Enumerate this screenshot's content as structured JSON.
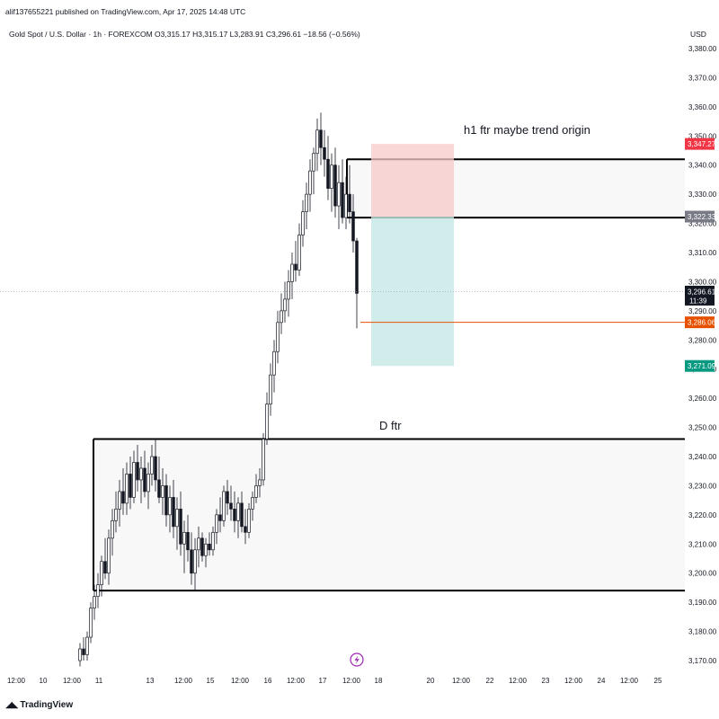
{
  "header": {
    "publish_line": "alif1376552​21 published on TradingView.com, Apr 17, 2025 14:48 UTC"
  },
  "symbol_line": "Gold Spot / U.S. Dollar · 1h · FOREXCOM  O3,315.17  H3,315.17  L3,283.91  C3,296.61  −18.56 (−0.56%)",
  "currency": "USD",
  "footer": {
    "logo_text": "TradingView",
    "logo_icon": "tradingview-logo-icon"
  },
  "colors": {
    "candle_body": "#131722",
    "candle_up": "#ffffff",
    "stop_zone": "#f7cac9",
    "target_zone": "#c5e9e6",
    "price_tag": "#131722",
    "red_tag": "#f23645",
    "gray_tag": "#787b86",
    "orange_tag": "#e65100",
    "green_tag": "#089981"
  },
  "chart_data": {
    "type": "candlestick",
    "y_axis": {
      "range": [
        3166,
        3386
      ],
      "ticks": [
        "3,380.00",
        "3,370.00",
        "3,360.00",
        "3,350.00",
        "3,340.00",
        "3,330.00",
        "3,320.00",
        "3,310.00",
        "3,300.00",
        "3,290.00",
        "3,280.00",
        "3,270.00",
        "3,260.00",
        "3,250.00",
        "3,240.00",
        "3,230.00",
        "3,220.00",
        "3,210.00",
        "3,200.00",
        "3,190.00",
        "3,180.00",
        "3,170.00"
      ],
      "tick_values": [
        3380,
        3370,
        3360,
        3350,
        3340,
        3330,
        3320,
        3310,
        3300,
        3290,
        3280,
        3270,
        3260,
        3250,
        3240,
        3230,
        3220,
        3210,
        3200,
        3190,
        3180,
        3170
      ]
    },
    "x_axis": {
      "ticks": [
        "12:00",
        "10",
        "12:00",
        "11",
        "13",
        "12:00",
        "15",
        "12:00",
        "16",
        "12:00",
        "17",
        "12:00",
        "18",
        "20",
        "12:00",
        "22",
        "12:00",
        "23",
        "12:00",
        "24",
        "12:00",
        "25"
      ],
      "tick_index": [
        0,
        10,
        20,
        27,
        40,
        50,
        59,
        69,
        79,
        89,
        99,
        109,
        119,
        139,
        149,
        159,
        169,
        179,
        189,
        199,
        209,
        219
      ]
    },
    "price_tags": [
      {
        "label": "3,347.27",
        "value": 3347.27,
        "color": "red"
      },
      {
        "label": "3,322.33",
        "value": 3322.33,
        "color": "gray"
      },
      {
        "label": "3,296.61",
        "value": 3296.61,
        "sub": "11:39",
        "color": "dark"
      },
      {
        "label": "3,286.06",
        "value": 3286.06,
        "color": "orange"
      },
      {
        "label": "3,271.09",
        "value": 3271.09,
        "color": "green"
      }
    ],
    "zones": [
      {
        "name": "h1-ftr-zone",
        "top": 3342,
        "bottom": 3322,
        "from_index": 113
      },
      {
        "name": "d-ftr-zone",
        "top": 3246,
        "bottom": 3194,
        "from_index": 30
      }
    ],
    "position": {
      "entry": 3322.33,
      "stop": 3347.27,
      "target": 3271.09,
      "from_index": 122,
      "to_index": 150
    },
    "annotations": [
      {
        "text": "h1 ftr maybe trend origin",
        "price": 3352,
        "index": 153
      },
      {
        "text": "D ftr",
        "price": 3250,
        "index": 125
      }
    ],
    "orange_line": {
      "value": 3286.06,
      "from_index": 92
    },
    "series": [
      {
        "i": 0,
        "o": 3170,
        "h": 3176,
        "l": 3168,
        "c": 3174
      },
      {
        "i": 1,
        "o": 3174,
        "h": 3178,
        "l": 3170,
        "c": 3172
      },
      {
        "i": 2,
        "o": 3172,
        "h": 3180,
        "l": 3170,
        "c": 3178
      },
      {
        "i": 3,
        "o": 3178,
        "h": 3190,
        "l": 3176,
        "c": 3188
      },
      {
        "i": 4,
        "o": 3188,
        "h": 3196,
        "l": 3184,
        "c": 3192
      },
      {
        "i": 5,
        "o": 3192,
        "h": 3200,
        "l": 3188,
        "c": 3196
      },
      {
        "i": 6,
        "o": 3196,
        "h": 3206,
        "l": 3192,
        "c": 3204
      },
      {
        "i": 7,
        "o": 3204,
        "h": 3212,
        "l": 3198,
        "c": 3200
      },
      {
        "i": 8,
        "o": 3200,
        "h": 3215,
        "l": 3196,
        "c": 3212
      },
      {
        "i": 9,
        "o": 3212,
        "h": 3222,
        "l": 3206,
        "c": 3218
      },
      {
        "i": 10,
        "o": 3218,
        "h": 3228,
        "l": 3214,
        "c": 3222
      },
      {
        "i": 11,
        "o": 3222,
        "h": 3232,
        "l": 3216,
        "c": 3228
      },
      {
        "i": 12,
        "o": 3228,
        "h": 3236,
        "l": 3220,
        "c": 3224
      },
      {
        "i": 13,
        "o": 3224,
        "h": 3238,
        "l": 3220,
        "c": 3234
      },
      {
        "i": 14,
        "o": 3234,
        "h": 3240,
        "l": 3222,
        "c": 3226
      },
      {
        "i": 15,
        "o": 3226,
        "h": 3242,
        "l": 3224,
        "c": 3238
      },
      {
        "i": 16,
        "o": 3238,
        "h": 3244,
        "l": 3228,
        "c": 3232
      },
      {
        "i": 17,
        "o": 3232,
        "h": 3240,
        "l": 3224,
        "c": 3236
      },
      {
        "i": 18,
        "o": 3236,
        "h": 3242,
        "l": 3226,
        "c": 3228
      },
      {
        "i": 19,
        "o": 3228,
        "h": 3238,
        "l": 3222,
        "c": 3234
      },
      {
        "i": 20,
        "o": 3234,
        "h": 3244,
        "l": 3230,
        "c": 3240
      },
      {
        "i": 21,
        "o": 3240,
        "h": 3246,
        "l": 3228,
        "c": 3232
      },
      {
        "i": 22,
        "o": 3232,
        "h": 3240,
        "l": 3224,
        "c": 3226
      },
      {
        "i": 23,
        "o": 3226,
        "h": 3236,
        "l": 3220,
        "c": 3230
      },
      {
        "i": 24,
        "o": 3230,
        "h": 3234,
        "l": 3216,
        "c": 3220
      },
      {
        "i": 25,
        "o": 3220,
        "h": 3230,
        "l": 3214,
        "c": 3226
      },
      {
        "i": 26,
        "o": 3226,
        "h": 3232,
        "l": 3212,
        "c": 3216
      },
      {
        "i": 27,
        "o": 3216,
        "h": 3226,
        "l": 3208,
        "c": 3222
      },
      {
        "i": 28,
        "o": 3222,
        "h": 3228,
        "l": 3206,
        "c": 3210
      },
      {
        "i": 29,
        "o": 3210,
        "h": 3218,
        "l": 3200,
        "c": 3214
      },
      {
        "i": 30,
        "o": 3214,
        "h": 3220,
        "l": 3204,
        "c": 3208
      },
      {
        "i": 31,
        "o": 3208,
        "h": 3214,
        "l": 3196,
        "c": 3200
      },
      {
        "i": 32,
        "o": 3200,
        "h": 3212,
        "l": 3194,
        "c": 3208
      },
      {
        "i": 33,
        "o": 3208,
        "h": 3216,
        "l": 3202,
        "c": 3212
      },
      {
        "i": 34,
        "o": 3212,
        "h": 3214,
        "l": 3204,
        "c": 3206
      },
      {
        "i": 35,
        "o": 3206,
        "h": 3212,
        "l": 3202,
        "c": 3210
      },
      {
        "i": 36,
        "o": 3210,
        "h": 3214,
        "l": 3206,
        "c": 3208
      },
      {
        "i": 37,
        "o": 3208,
        "h": 3216,
        "l": 3206,
        "c": 3214
      },
      {
        "i": 38,
        "o": 3214,
        "h": 3222,
        "l": 3210,
        "c": 3220
      },
      {
        "i": 39,
        "o": 3220,
        "h": 3226,
        "l": 3214,
        "c": 3218
      },
      {
        "i": 40,
        "o": 3218,
        "h": 3230,
        "l": 3216,
        "c": 3228
      },
      {
        "i": 41,
        "o": 3228,
        "h": 3232,
        "l": 3220,
        "c": 3224
      },
      {
        "i": 42,
        "o": 3224,
        "h": 3230,
        "l": 3218,
        "c": 3222
      },
      {
        "i": 43,
        "o": 3222,
        "h": 3228,
        "l": 3214,
        "c": 3218
      },
      {
        "i": 44,
        "o": 3218,
        "h": 3226,
        "l": 3212,
        "c": 3224
      },
      {
        "i": 45,
        "o": 3224,
        "h": 3228,
        "l": 3214,
        "c": 3216
      },
      {
        "i": 46,
        "o": 3216,
        "h": 3222,
        "l": 3210,
        "c": 3214
      },
      {
        "i": 47,
        "o": 3214,
        "h": 3224,
        "l": 3212,
        "c": 3222
      },
      {
        "i": 48,
        "o": 3222,
        "h": 3228,
        "l": 3218,
        "c": 3226
      },
      {
        "i": 49,
        "o": 3226,
        "h": 3234,
        "l": 3224,
        "c": 3230
      },
      {
        "i": 50,
        "o": 3230,
        "h": 3236,
        "l": 3226,
        "c": 3232
      },
      {
        "i": 51,
        "o": 3232,
        "h": 3248,
        "l": 3230,
        "c": 3246
      },
      {
        "i": 52,
        "o": 3246,
        "h": 3262,
        "l": 3244,
        "c": 3258
      },
      {
        "i": 53,
        "o": 3258,
        "h": 3272,
        "l": 3254,
        "c": 3268
      },
      {
        "i": 54,
        "o": 3268,
        "h": 3280,
        "l": 3262,
        "c": 3276
      },
      {
        "i": 55,
        "o": 3276,
        "h": 3290,
        "l": 3272,
        "c": 3286
      },
      {
        "i": 56,
        "o": 3286,
        "h": 3296,
        "l": 3282,
        "c": 3290
      },
      {
        "i": 57,
        "o": 3290,
        "h": 3300,
        "l": 3286,
        "c": 3294
      },
      {
        "i": 58,
        "o": 3294,
        "h": 3304,
        "l": 3288,
        "c": 3300
      },
      {
        "i": 59,
        "o": 3300,
        "h": 3310,
        "l": 3294,
        "c": 3306
      },
      {
        "i": 60,
        "o": 3306,
        "h": 3314,
        "l": 3300,
        "c": 3304
      },
      {
        "i": 61,
        "o": 3304,
        "h": 3320,
        "l": 3302,
        "c": 3316
      },
      {
        "i": 62,
        "o": 3316,
        "h": 3328,
        "l": 3312,
        "c": 3324
      },
      {
        "i": 63,
        "o": 3324,
        "h": 3334,
        "l": 3318,
        "c": 3330
      },
      {
        "i": 64,
        "o": 3330,
        "h": 3342,
        "l": 3324,
        "c": 3338
      },
      {
        "i": 65,
        "o": 3338,
        "h": 3346,
        "l": 3330,
        "c": 3344
      },
      {
        "i": 66,
        "o": 3344,
        "h": 3356,
        "l": 3338,
        "c": 3352
      },
      {
        "i": 67,
        "o": 3352,
        "h": 3358,
        "l": 3340,
        "c": 3346
      },
      {
        "i": 68,
        "o": 3346,
        "h": 3352,
        "l": 3336,
        "c": 3342
      },
      {
        "i": 69,
        "o": 3342,
        "h": 3350,
        "l": 3328,
        "c": 3332
      },
      {
        "i": 70,
        "o": 3332,
        "h": 3344,
        "l": 3324,
        "c": 3340
      },
      {
        "i": 71,
        "o": 3340,
        "h": 3346,
        "l": 3322,
        "c": 3326
      },
      {
        "i": 72,
        "o": 3326,
        "h": 3340,
        "l": 3318,
        "c": 3334
      },
      {
        "i": 73,
        "o": 3334,
        "h": 3342,
        "l": 3320,
        "c": 3322
      },
      {
        "i": 74,
        "o": 3322,
        "h": 3336,
        "l": 3318,
        "c": 3330
      },
      {
        "i": 75,
        "o": 3330,
        "h": 3340,
        "l": 3320,
        "c": 3324
      },
      {
        "i": 76,
        "o": 3324,
        "h": 3330,
        "l": 3310,
        "c": 3314
      },
      {
        "i": 77,
        "o": 3314,
        "h": 3315,
        "l": 3284,
        "c": 3296
      }
    ]
  }
}
